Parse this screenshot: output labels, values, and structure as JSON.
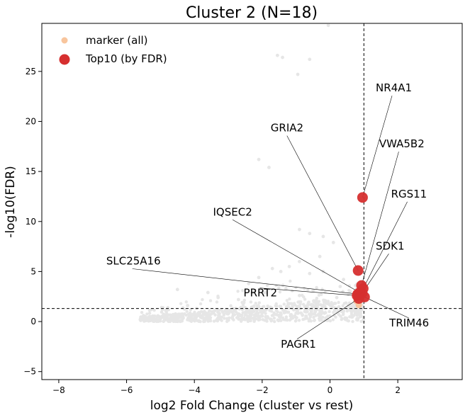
{
  "chart_data": {
    "type": "scatter",
    "title": "Cluster 2 (N=18)",
    "xlabel": "log2 Fold Change (cluster vs rest)",
    "ylabel": "-log10(FDR)",
    "xlim": [
      -8.5,
      3.9
    ],
    "ylim": [
      -5.8,
      29.8
    ],
    "xticks": [
      -8,
      -6,
      -4,
      -2,
      0,
      2
    ],
    "yticks": [
      -5,
      0,
      5,
      10,
      15,
      20,
      25
    ],
    "grid": false,
    "legend_position": "top-left",
    "legend": [
      {
        "label": "marker (all)",
        "color": "#f8c59d"
      },
      {
        "label": "Top10 (by FDR)",
        "color": "#d62f2f"
      }
    ],
    "thresholds": {
      "x": 1.0,
      "y": 1.3
    },
    "colors": {
      "background_points": "#e6e6e6",
      "marker_points": "#f8c59d",
      "top_points": "#d62f2f"
    },
    "background_points": [
      [
        -0.05,
        29.6
      ],
      [
        -1.55,
        26.6
      ],
      [
        -1.4,
        26.4
      ],
      [
        -0.6,
        26.2
      ],
      [
        -2.1,
        16.2
      ],
      [
        -0.95,
        24.7
      ],
      [
        -1.8,
        15.4
      ],
      [
        -0.9,
        9.2
      ],
      [
        -0.6,
        8.8
      ],
      [
        -0.2,
        8.5
      ],
      [
        0.1,
        7.9
      ],
      [
        -0.3,
        6.5
      ],
      [
        -0.9,
        6.0
      ],
      [
        -1.2,
        5.5
      ],
      [
        -1.45,
        5.0
      ],
      [
        -1.7,
        5.3
      ],
      [
        -0.6,
        4.8
      ],
      [
        -0.2,
        5.0
      ],
      [
        -2.1,
        4.4
      ],
      [
        -2.4,
        3.8
      ],
      [
        -1.3,
        3.3
      ],
      [
        -3.6,
        2.9
      ],
      [
        -4.5,
        3.2
      ],
      [
        -4.2,
        1.6
      ],
      [
        -3.3,
        2.4
      ],
      [
        -2.7,
        2.2
      ],
      [
        -5.5,
        0.6
      ],
      [
        -4.9,
        0.4
      ],
      [
        -0.5,
        3.1
      ],
      [
        0.3,
        3.5
      ],
      [
        0.4,
        4.2
      ],
      [
        -0.9,
        2.6
      ],
      [
        -1.9,
        2.9
      ],
      [
        0.6,
        3.0
      ],
      [
        0.2,
        2.4
      ],
      [
        -0.1,
        1.9
      ]
    ],
    "marker_points": [
      [
        0.85,
        1.65
      ],
      [
        0.92,
        2.2
      ],
      [
        0.78,
        2.05
      ]
    ],
    "top_points": [
      {
        "gene": "NR4A1",
        "x": 0.96,
        "y": 12.4,
        "label_x": 1.35,
        "label_y": 23.0
      },
      {
        "gene": "GRIA2",
        "x": 0.83,
        "y": 5.1,
        "label_x": -1.75,
        "label_y": 19.0
      },
      {
        "gene": "VWA5B2",
        "x": 0.93,
        "y": 3.6,
        "label_x": 1.45,
        "label_y": 17.4
      },
      {
        "gene": "RGS11",
        "x": 0.98,
        "y": 3.3,
        "label_x": 1.8,
        "label_y": 12.4
      },
      {
        "gene": "IQSEC2",
        "x": 0.88,
        "y": 2.9,
        "label_x": -3.45,
        "label_y": 10.6
      },
      {
        "gene": "SDK1",
        "x": 0.95,
        "y": 2.85,
        "label_x": 1.35,
        "label_y": 7.2
      },
      {
        "gene": "SLC25A16",
        "x": 0.82,
        "y": 2.75,
        "label_x": -6.6,
        "label_y": 5.7
      },
      {
        "gene": "PRRT2",
        "x": 0.8,
        "y": 2.6,
        "label_x": -2.55,
        "label_y": 2.5
      },
      {
        "gene": "TRIM46",
        "x": 1.02,
        "y": 2.45,
        "label_x": 1.75,
        "label_y": -0.5
      },
      {
        "gene": "PAGR1",
        "x": 0.85,
        "y": 2.3,
        "label_x": -1.45,
        "label_y": -2.6
      }
    ]
  }
}
